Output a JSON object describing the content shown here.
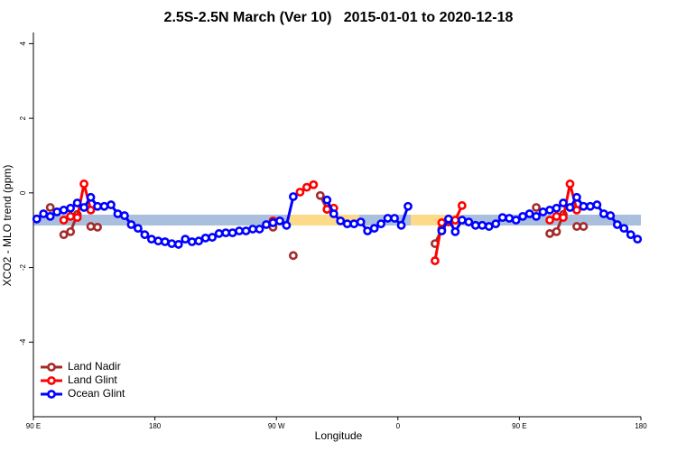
{
  "chart_data": {
    "type": "line",
    "title": "2.5S-2.5N March (Ver 10)   2015-01-01 to 2020-12-18",
    "x_label": "Longitude",
    "y_label": "XCO2 - MLO trend (ppm)",
    "xlim": [
      90,
      540
    ],
    "xticks": [
      {
        "value": 90,
        "label": "90 E"
      },
      180,
      {
        "value": 270,
        "label": "90 W"
      },
      {
        "value": 360,
        "label": "0"
      },
      {
        "value": 450,
        "label": "90 E"
      },
      {
        "value": 540,
        "label": "180"
      }
    ],
    "ylim": [
      -6,
      4.3
    ],
    "yticks": [
      -4,
      -2,
      0,
      2,
      4
    ],
    "legend": "bottom-left",
    "x": [
      92.5,
      97.5,
      102.5,
      107.5,
      112.5,
      117.5,
      122.5,
      127.5,
      132.5,
      137.5,
      142.5,
      147.5,
      152.5,
      157.5,
      162.5,
      167.5,
      172.5,
      177.5,
      182.5,
      187.5,
      192.5,
      197.5,
      202.5,
      207.5,
      212.5,
      217.5,
      222.5,
      227.5,
      232.5,
      237.5,
      242.5,
      247.5,
      252.5,
      257.5,
      262.5,
      267.5,
      272.5,
      277.5,
      282.5,
      287.5,
      292.5,
      297.5,
      302.5,
      307.5,
      312.5,
      317.5,
      322.5,
      327.5,
      332.5,
      337.5,
      342.5,
      347.5,
      352.5,
      357.5,
      362.5,
      367.5,
      372.5,
      377.5,
      382.5,
      387.5,
      392.5,
      397.5,
      402.5,
      407.5,
      412.5,
      417.5,
      422.5,
      427.5,
      432.5,
      437.5,
      442.5,
      447.5,
      452.5,
      457.5,
      462.5,
      467.5,
      472.5,
      477.5,
      482.5,
      487.5,
      492.5,
      497.5,
      502.5,
      507.5,
      512.5,
      517.5,
      522.5,
      527.5,
      532.5,
      537.5
    ],
    "series": [
      {
        "name": "Land Nadir",
        "color": "#a52a2a",
        "values": [
          null,
          null,
          -0.39,
          null,
          -1.12,
          -1.04,
          -0.58,
          null,
          -0.9,
          -0.92,
          null,
          null,
          null,
          null,
          null,
          null,
          null,
          null,
          null,
          null,
          null,
          null,
          null,
          null,
          null,
          null,
          null,
          null,
          null,
          null,
          null,
          null,
          null,
          null,
          null,
          -0.92,
          null,
          null,
          -1.68,
          null,
          null,
          null,
          -0.07,
          -0.44,
          null,
          null,
          null,
          null,
          null,
          null,
          null,
          null,
          null,
          null,
          null,
          null,
          null,
          null,
          null,
          -1.36,
          -0.97,
          -0.78,
          null,
          null,
          null,
          null,
          null,
          null,
          null,
          null,
          null,
          null,
          null,
          null,
          -0.39,
          null,
          -1.09,
          -1.04,
          -0.58,
          null,
          -0.9,
          -0.9,
          null,
          null,
          null,
          null,
          null,
          null,
          null,
          null
        ]
      },
      {
        "name": "Land Glint",
        "color": "#ff0000",
        "values": [
          null,
          null,
          null,
          null,
          -0.73,
          -0.63,
          -0.66,
          0.24,
          -0.46,
          null,
          null,
          null,
          null,
          null,
          null,
          null,
          null,
          null,
          null,
          null,
          null,
          null,
          null,
          null,
          null,
          null,
          null,
          null,
          null,
          null,
          null,
          null,
          null,
          null,
          null,
          -0.75,
          null,
          null,
          null,
          0.02,
          0.15,
          0.22,
          null,
          -0.44,
          -0.41,
          null,
          null,
          null,
          null,
          null,
          null,
          null,
          null,
          null,
          null,
          null,
          null,
          null,
          null,
          -1.82,
          -0.8,
          -0.75,
          -0.73,
          -0.34,
          null,
          null,
          null,
          null,
          null,
          null,
          null,
          null,
          null,
          null,
          null,
          null,
          -0.73,
          -0.63,
          -0.66,
          0.24,
          -0.46,
          null,
          null,
          null,
          null,
          null,
          null,
          null,
          null,
          null
        ]
      },
      {
        "name": "Ocean Glint",
        "color": "#0000ff",
        "values": [
          -0.7,
          -0.56,
          -0.63,
          -0.51,
          -0.46,
          -0.41,
          -0.27,
          -0.39,
          -0.12,
          -0.36,
          -0.36,
          -0.32,
          -0.56,
          -0.61,
          -0.85,
          -0.95,
          -1.12,
          -1.24,
          -1.29,
          -1.31,
          -1.36,
          -1.38,
          -1.24,
          -1.31,
          -1.29,
          -1.21,
          -1.19,
          -1.09,
          -1.07,
          -1.07,
          -1.02,
          -1.02,
          -0.97,
          -0.97,
          -0.85,
          -0.8,
          -0.75,
          -0.87,
          -0.1,
          null,
          null,
          null,
          null,
          -0.19,
          -0.56,
          -0.75,
          -0.83,
          -0.83,
          -0.78,
          -1.02,
          -0.95,
          -0.83,
          -0.68,
          -0.68,
          -0.87,
          -0.36,
          null,
          null,
          null,
          null,
          -1.02,
          -0.7,
          -1.04,
          -0.73,
          -0.78,
          -0.87,
          -0.87,
          -0.9,
          -0.83,
          -0.66,
          -0.68,
          -0.73,
          -0.63,
          -0.56,
          -0.63,
          -0.51,
          -0.46,
          -0.41,
          -0.27,
          -0.39,
          -0.12,
          -0.36,
          -0.36,
          -0.32,
          -0.56,
          -0.61,
          -0.85,
          -0.95,
          -1.12,
          -1.24
        ]
      }
    ]
  }
}
